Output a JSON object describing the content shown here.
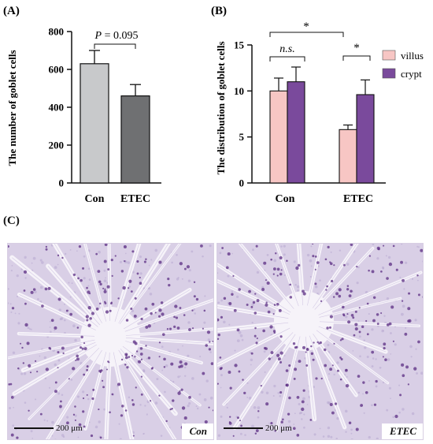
{
  "panel_labels": {
    "a": "(A)",
    "b": "(B)",
    "c": "(C)"
  },
  "colors": {
    "con": "#c8c9cb",
    "etec": "#6f7072",
    "villus": "#f7c6c4",
    "crypt": "#7a4a9c",
    "tissue": "#c9bddc",
    "lumen": "#f4f1f7",
    "goblet": "#5b2d83"
  },
  "chart_data": [
    {
      "panel": "A",
      "type": "bar",
      "categories": [
        "Con",
        "ETEC"
      ],
      "values": [
        630,
        460
      ],
      "errors": [
        70,
        60
      ],
      "ylabel": "The number of goblet cells",
      "ylim": [
        0,
        800
      ],
      "yticks": [
        0,
        200,
        400,
        600,
        800
      ],
      "annotation": {
        "prefix": "P",
        "text": " = 0.095"
      }
    },
    {
      "panel": "B",
      "type": "bar",
      "categories": [
        "Con",
        "ETEC"
      ],
      "series": [
        {
          "name": "villus",
          "values": [
            10.0,
            5.8
          ],
          "errors": [
            1.4,
            0.5
          ]
        },
        {
          "name": "crypt",
          "values": [
            11.0,
            9.6
          ],
          "errors": [
            1.6,
            1.6
          ]
        }
      ],
      "ylabel": "The distribution of goblet cells",
      "ylim": [
        0,
        15
      ],
      "yticks": [
        0,
        5,
        10,
        15
      ],
      "legend_position": "top-right",
      "significance": [
        {
          "pair": "Con villus vs Con crypt",
          "label": "n.s."
        },
        {
          "pair": "Con villus vs ETEC villus",
          "label": "*"
        },
        {
          "pair": "ETEC villus vs ETEC crypt",
          "label": "*"
        }
      ]
    }
  ],
  "micrographs": [
    {
      "group": "Con",
      "scale_text": "200 μm"
    },
    {
      "group": "ETEC",
      "scale_text": "200 μm"
    }
  ]
}
